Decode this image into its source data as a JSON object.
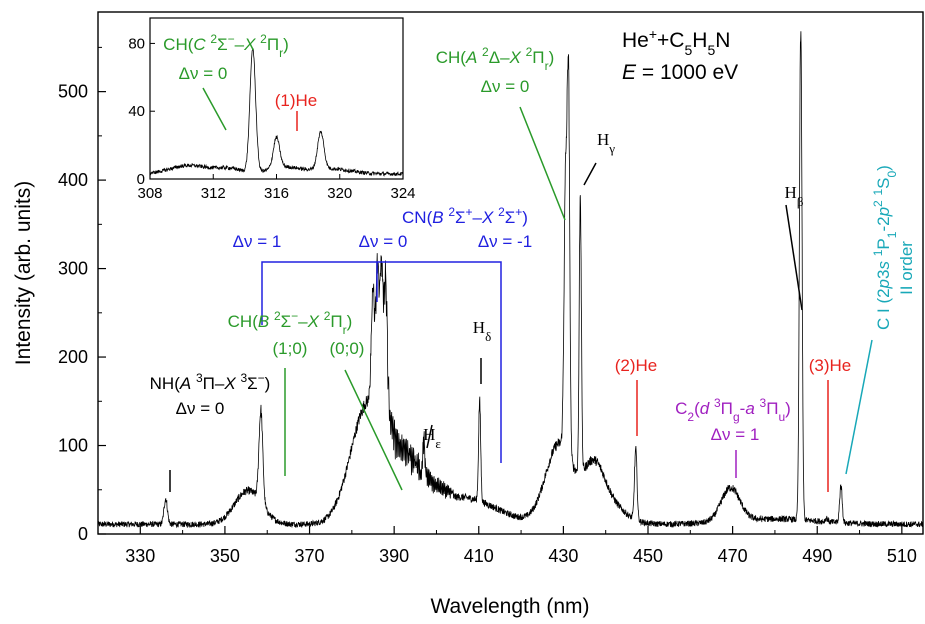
{
  "chart_data": {
    "type": "line",
    "xlabel": "Wavelength (nm)",
    "ylabel": "Intensity (arb. units)",
    "xlim": [
      320,
      515
    ],
    "ylim": [
      0,
      590
    ],
    "x_ticks": [
      "330",
      "350",
      "370",
      "390",
      "410",
      "430",
      "450",
      "470",
      "490",
      "510"
    ],
    "y_ticks": [
      "0",
      "100",
      "200",
      "300",
      "400",
      "500"
    ],
    "grid": false,
    "title_lines": [
      "He⁺+C₅H₅N",
      "E = 1000 eV"
    ],
    "peaks": [
      {
        "x": 336.0,
        "y": 40,
        "w": 0.4
      },
      {
        "x": 358.5,
        "y": 140,
        "w": 0.45
      },
      {
        "x": 385.0,
        "y": 265,
        "w": 0.35
      },
      {
        "x": 386.0,
        "y": 300,
        "w": 0.35
      },
      {
        "x": 387.0,
        "y": 290,
        "w": 0.35
      },
      {
        "x": 388.0,
        "y": 270,
        "w": 0.35
      },
      {
        "x": 397.0,
        "y": 95,
        "w": 0.25
      },
      {
        "x": 410.2,
        "y": 150,
        "w": 0.25
      },
      {
        "x": 430.5,
        "y": 390,
        "w": 0.35
      },
      {
        "x": 431.2,
        "y": 500,
        "w": 0.3
      },
      {
        "x": 434.0,
        "y": 385,
        "w": 0.25
      },
      {
        "x": 447.1,
        "y": 95,
        "w": 0.3
      },
      {
        "x": 486.1,
        "y": 575,
        "w": 0.3
      },
      {
        "x": 492.2,
        "y": 18,
        "w": 0.3
      },
      {
        "x": 495.6,
        "y": 55,
        "w": 0.3
      }
    ],
    "inset": {
      "type": "line",
      "xlim": [
        308,
        324
      ],
      "ylim": [
        0,
        95
      ],
      "x_ticks": [
        "308",
        "312",
        "316",
        "320",
        "324"
      ],
      "y_ticks": [
        "0",
        "40",
        "80"
      ],
      "peaks": [
        {
          "x": 314.5,
          "y": 73,
          "w": 0.18
        },
        {
          "x": 316.0,
          "y": 18,
          "w": 0.2
        },
        {
          "x": 318.8,
          "y": 22,
          "w": 0.2
        }
      ]
    },
    "annotations": {
      "nh": [
        "NH(A ³Π–X ³Σ⁻)",
        "Δν = 0"
      ],
      "ch_b": [
        "CH(B ²Σ⁻–X ²Π",
        "r",
        ")"
      ],
      "ch_b_10": "(1;0)",
      "ch_b_00": "(0;0)",
      "cn": [
        "CN(B ²Σ⁺–X ²Σ⁺)"
      ],
      "cn_dv1": "Δν = 1",
      "cn_dv0": "Δν = 0",
      "cn_dvm1": "Δν = -1",
      "ch_a": [
        "CH(A ²Δ–X ²Π",
        "r",
        ")"
      ],
      "ch_a_dv": "Δν = 0",
      "he2": "(2)He",
      "he3": "(3)He",
      "c2": [
        "C",
        "2",
        "(d ³Π",
        "g",
        "-a ³Π",
        "u",
        ")"
      ],
      "c2_dv": "Δν = 1",
      "ci": "C I (2p3s ¹P₁-2p² ¹S₀)",
      "ci_order": "II order",
      "h_eps": "Hε",
      "h_delta": "Hδ",
      "h_gamma": "Hγ",
      "h_beta": "Hβ",
      "inset_ch": [
        "CH(C ²Σ⁻–X ²Π",
        "r",
        ")"
      ],
      "inset_dv": "Δν = 0",
      "inset_he": "(1)He"
    },
    "colors": {
      "black": "#000000",
      "green": "#2a9a2a",
      "red": "#e8231e",
      "blue": "#2020e0",
      "purple": "#a020c0",
      "cyan": "#18a8b8"
    }
  }
}
